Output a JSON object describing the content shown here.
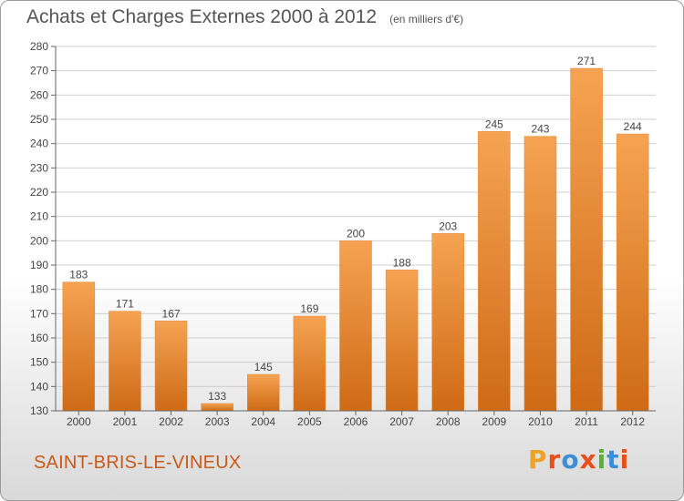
{
  "header": {
    "title": "Achats et Charges Externes 2000 à 2012",
    "unit": "(en milliers d'€)"
  },
  "footer": {
    "commune": "SAINT-BRIS-LE-VINEUX",
    "logo_text": "Proxiti",
    "logo_colors": [
      "#f0a12a",
      "#e94e1b",
      "#3a8fd8",
      "#e94e1b",
      "#5bb030",
      "#3a8fd8",
      "#e94e1b"
    ]
  },
  "colors": {
    "bar_top": "#f5a352",
    "bar_bottom": "#cf6a15",
    "axis": "#666666",
    "grid": "#cfcfcf",
    "text": "#444444"
  },
  "chart_data": {
    "type": "bar",
    "title": "Achats et Charges Externes 2000 à 2012",
    "subtitle": "(en milliers d'€)",
    "xlabel": "",
    "ylabel": "",
    "categories": [
      "2000",
      "2001",
      "2002",
      "2003",
      "2004",
      "2005",
      "2006",
      "2007",
      "2008",
      "2009",
      "2010",
      "2011",
      "2012"
    ],
    "values": [
      183,
      171,
      167,
      133,
      145,
      169,
      200,
      188,
      203,
      245,
      243,
      271,
      244
    ],
    "ylim": [
      130,
      280
    ],
    "yticks": [
      130,
      140,
      150,
      160,
      170,
      180,
      190,
      200,
      210,
      220,
      230,
      240,
      250,
      260,
      270,
      280
    ],
    "grid": true,
    "data_labels": true
  }
}
